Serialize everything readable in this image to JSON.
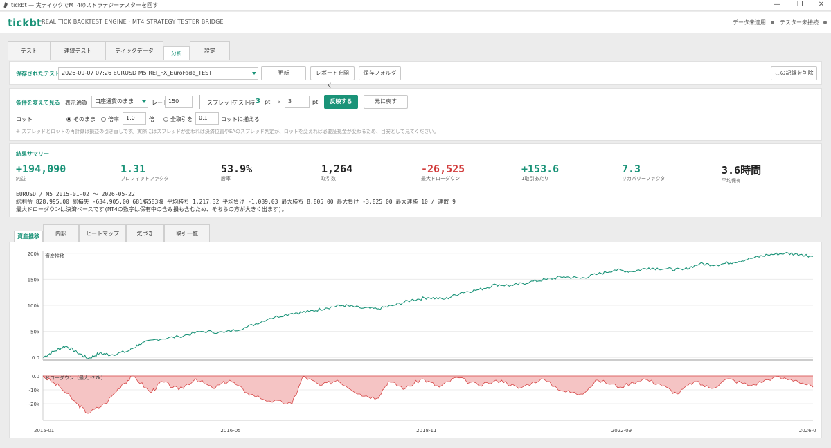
{
  "window": {
    "title": "tickbt — 実ティックでMT4のストラテジーテスターを回す"
  },
  "header": {
    "brand": "tickbt",
    "subtitle": "REAL TICK BACKTEST ENGINE · MT4 STRATEGY TESTER BRIDGE",
    "status_data": "データ未適用",
    "status_tester": "テスター未接続"
  },
  "main_tabs": [
    "テスト",
    "連続テスト",
    "ティックデータ",
    "分析",
    "設定"
  ],
  "saved": {
    "label": "保存されたテスト",
    "selected": "2026-09-07 07:26   EURUSD M5   REI_FX_EuroFade_TEST",
    "update_btn": "更新",
    "open_report_btn": "レポートを開く...",
    "save_folder_btn": "保存フォルダ",
    "delete_btn": "この記録を削除"
  },
  "conditions": {
    "label": "条件を変えて見る",
    "currency_label": "表示通貨",
    "currency_value": "口座通貨のまま",
    "rate_label": "レート",
    "rate_value": "150",
    "spread_label": "スプレッド",
    "test_time_label": "テスト時",
    "spread_test_value": "3",
    "pt_unit": "pt",
    "arrow": "→",
    "spread_new_value": "3",
    "apply_btn": "反映する",
    "reset_btn": "元に戻す",
    "lot_label": "ロット",
    "opt_as_is": "そのまま",
    "opt_multiplier": "倍率",
    "multiplier_value": "1.0",
    "multiplier_unit": "倍",
    "opt_all": "全取引を",
    "all_value": "0.1",
    "all_unit": "ロットに揃える",
    "note": "※ スプレッドとロットの再計算は損益の引き直しです。実際にはスプレッドが変われば決済位置やEAのスプレッド判定が、ロットを変えれば必要証拠金が変わるため、目安として見てください。"
  },
  "summary": {
    "label": "結果サマリー",
    "metrics": [
      {
        "value": "+194,090",
        "label": "純益",
        "color": "#1a9378"
      },
      {
        "value": "1.31",
        "label": "プロフィットファクタ",
        "color": "#1a9378"
      },
      {
        "value": "53.9%",
        "label": "勝率",
        "color": "#222222"
      },
      {
        "value": "1,264",
        "label": "取引数",
        "color": "#222222"
      },
      {
        "value": "-26,525",
        "label": "最大ドローダウン",
        "color": "#d13b3b"
      },
      {
        "value": "+153.6",
        "label": "1取引あたり",
        "color": "#1a9378"
      },
      {
        "value": "7.3",
        "label": "リカバリーファクタ",
        "color": "#1a9378"
      },
      {
        "value": "3.6時間",
        "label": "平均保有",
        "color": "#222222"
      }
    ],
    "line1": "EURUSD / M5 2015-01-02 ～ 2026-05-22",
    "line2": "総利益 828,995.00   総損失 -634,905.00   681勝583敗   平均勝ち 1,217.32   平均負け -1,089.03   最大勝ち 8,805.00   最大負け -3,825.00   最大連勝 10 / 連敗 9",
    "line3": "最大ドローダウンは決済ベースです(MT4の数字は保有中の含み損も含むため、そちらの方が大きく出ます)。"
  },
  "sub_tabs": [
    "資産推移",
    "内訳",
    "ヒートマップ",
    "気づき",
    "取引一覧"
  ],
  "chart_data": [
    {
      "type": "line",
      "title": "資産推移",
      "y_ticks": [
        "200k",
        "150k",
        "100k",
        "50k",
        "0.0"
      ],
      "ylim": [
        -5000,
        205000
      ],
      "x_ticks": [
        "2015-01",
        "2016-05",
        "2018-11",
        "2022-09",
        "2026-0"
      ],
      "series": [
        {
          "color": "#1a9378",
          "points": [
            [
              "2015-01",
              0
            ],
            [
              "2015-03",
              12000
            ],
            [
              "2015-05",
              22000
            ],
            [
              "2015-07",
              10000
            ],
            [
              "2015-09",
              -2000
            ],
            [
              "2015-11",
              8000
            ],
            [
              "2016-01",
              5000
            ],
            [
              "2016-04",
              12000
            ],
            [
              "2016-06",
              25000
            ],
            [
              "2016-09",
              35000
            ],
            [
              "2017-01",
              40000
            ],
            [
              "2017-05",
              50000
            ],
            [
              "2017-09",
              48000
            ],
            [
              "2018-01",
              58000
            ],
            [
              "2018-05",
              75000
            ],
            [
              "2018-09",
              85000
            ],
            [
              "2018-12",
              88000
            ],
            [
              "2019-03",
              95000
            ],
            [
              "2019-06",
              100000
            ],
            [
              "2019-09",
              95000
            ],
            [
              "2019-12",
              93000
            ],
            [
              "2020-03",
              100000
            ],
            [
              "2020-06",
              110000
            ],
            [
              "2020-09",
              115000
            ],
            [
              "2020-12",
              112000
            ],
            [
              "2021-03",
              125000
            ],
            [
              "2021-06",
              130000
            ],
            [
              "2021-09",
              140000
            ],
            [
              "2021-12",
              138000
            ],
            [
              "2022-03",
              145000
            ],
            [
              "2022-06",
              150000
            ],
            [
              "2022-09",
              155000
            ],
            [
              "2022-12",
              152000
            ],
            [
              "2023-03",
              160000
            ],
            [
              "2023-06",
              168000
            ],
            [
              "2023-09",
              165000
            ],
            [
              "2023-12",
              172000
            ],
            [
              "2024-03",
              170000
            ],
            [
              "2024-06",
              168000
            ],
            [
              "2024-09",
              180000
            ],
            [
              "2024-12",
              178000
            ],
            [
              "2025-03",
              183000
            ],
            [
              "2025-06",
              190000
            ],
            [
              "2025-09",
              197000
            ],
            [
              "2025-12",
              200000
            ],
            [
              "2026-03",
              198000
            ],
            [
              "2026-05",
              194000
            ]
          ]
        }
      ]
    },
    {
      "type": "area",
      "title": "ドローダウン（最大 -27k）",
      "y_ticks": [
        "0.0",
        "-10k",
        "-20k"
      ],
      "ylim": [
        -30000,
        0
      ],
      "series": [
        {
          "color": "#d64545",
          "points": [
            [
              "2015-01",
              0
            ],
            [
              "2015-04",
              -8000
            ],
            [
              "2015-07",
              -20000
            ],
            [
              "2015-09",
              -27000
            ],
            [
              "2015-12",
              -20000
            ],
            [
              "2016-03",
              -6000
            ],
            [
              "2016-05",
              0
            ],
            [
              "2016-08",
              -12000
            ],
            [
              "2016-10",
              -4000
            ],
            [
              "2017-01",
              -10000
            ],
            [
              "2017-04",
              -2000
            ],
            [
              "2017-07",
              -9000
            ],
            [
              "2017-10",
              -3000
            ],
            [
              "2018-01",
              -12000
            ],
            [
              "2018-05",
              -18000
            ],
            [
              "2018-09",
              -20000
            ],
            [
              "2018-11",
              0
            ],
            [
              "2019-02",
              -7000
            ],
            [
              "2019-05",
              -3000
            ],
            [
              "2019-09",
              -13000
            ],
            [
              "2019-12",
              -16000
            ],
            [
              "2020-02",
              -4000
            ],
            [
              "2020-05",
              -9000
            ],
            [
              "2020-08",
              -2000
            ],
            [
              "2020-11",
              -8000
            ],
            [
              "2021-02",
              -1000
            ],
            [
              "2021-06",
              -7000
            ],
            [
              "2021-10",
              -3000
            ],
            [
              "2022-01",
              -9000
            ],
            [
              "2022-05",
              -2000
            ],
            [
              "2022-09",
              -11000
            ],
            [
              "2022-12",
              -13000
            ],
            [
              "2023-03",
              -3000
            ],
            [
              "2023-07",
              -8000
            ],
            [
              "2023-11",
              -2000
            ],
            [
              "2024-02",
              -6000
            ],
            [
              "2024-05",
              -13000
            ],
            [
              "2024-08",
              -4000
            ],
            [
              "2024-11",
              -9000
            ],
            [
              "2025-02",
              -2000
            ],
            [
              "2025-06",
              -7000
            ],
            [
              "2025-10",
              -1000
            ],
            [
              "2026-02",
              -3000
            ],
            [
              "2026-05",
              -8000
            ]
          ]
        }
      ]
    }
  ]
}
